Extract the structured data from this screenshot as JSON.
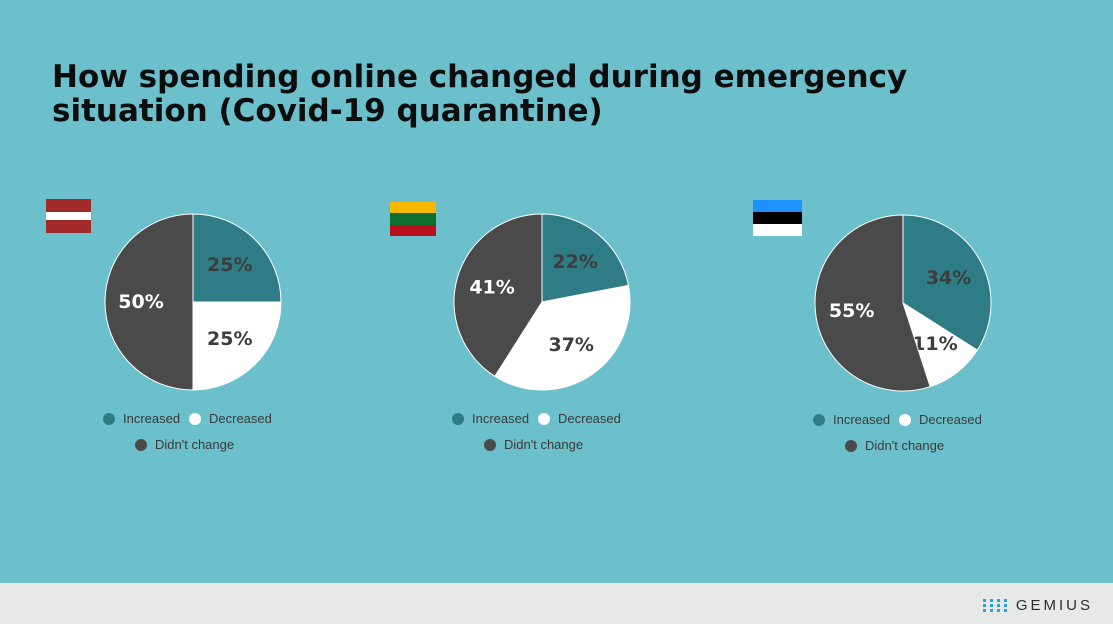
{
  "title_line1": "How spending online changed during emergency",
  "title_line2": "situation (Covid-19 quarantine)",
  "colors": {
    "increased": "#2e7d86",
    "decreased": "#ffffff",
    "didnt_change": "#4b4a4b"
  },
  "legend": {
    "increased": "Increased",
    "decreased": "Decreased",
    "didnt_change": "Didn't change"
  },
  "chart_data": [
    {
      "type": "pie",
      "flag": "latvia-flag",
      "slices": [
        {
          "key": "increased",
          "value": 25,
          "label": "25%"
        },
        {
          "key": "decreased",
          "value": 25,
          "label": "25%"
        },
        {
          "key": "didnt_change",
          "value": 50,
          "label": "50%"
        }
      ]
    },
    {
      "type": "pie",
      "flag": "lithuania-flag",
      "slices": [
        {
          "key": "increased",
          "value": 22,
          "label": "22%"
        },
        {
          "key": "decreased",
          "value": 37,
          "label": "37%"
        },
        {
          "key": "didnt_change",
          "value": 41,
          "label": "41%"
        }
      ]
    },
    {
      "type": "pie",
      "flag": "estonia-flag",
      "slices": [
        {
          "key": "increased",
          "value": 34,
          "label": "34%"
        },
        {
          "key": "decreased",
          "value": 11,
          "label": "11%"
        },
        {
          "key": "didnt_change",
          "value": 55,
          "label": "55%"
        }
      ]
    }
  ],
  "footer": {
    "logo_text": "GEMIUS"
  }
}
